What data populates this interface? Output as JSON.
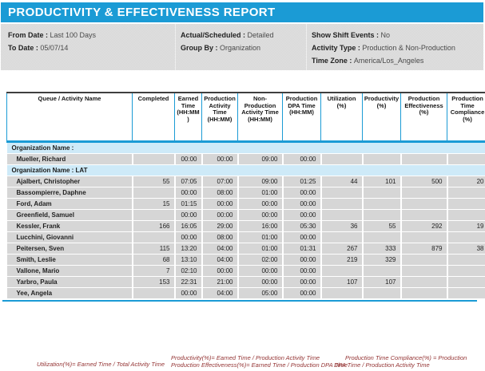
{
  "title": "PRODUCTIVITY & EFFECTIVENESS REPORT",
  "colors": {
    "brand_blue": "#1b9bd5",
    "group_row_blue": "#cbe9f7",
    "data_row_gray": "#d6d6d6",
    "footnote_red": "#943434"
  },
  "filters": {
    "col1": [
      {
        "label": "From Date",
        "value": "Last 100 Days"
      },
      {
        "label": "To Date",
        "value": "05/07/14"
      }
    ],
    "col2": [
      {
        "label": "Actual/Scheduled",
        "value": "Detailed"
      },
      {
        "label": "Group By",
        "value": "Organization"
      }
    ],
    "col3": [
      {
        "label": "Show Shift Events",
        "value": "No"
      },
      {
        "label": "Activity Type",
        "value": "Production & Non-Production"
      },
      {
        "label": "Time Zone",
        "value": "America/Los_Angeles"
      }
    ]
  },
  "table": {
    "columns": [
      "Queue / Activity Name",
      "Completed",
      "Earned Time (HH:MM )",
      "Production Activity Time (HH:MM)",
      "Non- Production Activity Time (HH:MM)",
      "Production DPA Time (HH:MM)",
      "Utilization (%)",
      "Productivity(%)",
      "Production Effectiveness (%)",
      "Production Time Compliance (%)"
    ],
    "rows": [
      {
        "type": "group",
        "label": "Organization Name :"
      },
      {
        "type": "data",
        "name": "Mueller, Richard",
        "values": [
          "",
          "00:00",
          "00:00",
          "09:00",
          "00:00",
          "",
          "",
          "",
          ""
        ]
      },
      {
        "type": "group",
        "label": "Organization Name : LAT"
      },
      {
        "type": "data",
        "name": "Ajalbert, Christopher",
        "values": [
          "55",
          "07:05",
          "07:00",
          "09:00",
          "01:25",
          "44",
          "101",
          "500",
          "20"
        ]
      },
      {
        "type": "data",
        "name": "Bassompierre, Daphne",
        "values": [
          "",
          "00:00",
          "08:00",
          "01:00",
          "00:00",
          "",
          "",
          "",
          ""
        ]
      },
      {
        "type": "data",
        "name": "Ford, Adam",
        "values": [
          "15",
          "01:15",
          "00:00",
          "00:00",
          "00:00",
          "",
          "",
          "",
          ""
        ]
      },
      {
        "type": "data",
        "name": "Greenfield, Samuel",
        "values": [
          "",
          "00:00",
          "00:00",
          "00:00",
          "00:00",
          "",
          "",
          "",
          ""
        ]
      },
      {
        "type": "data",
        "name": "Kessler, Frank",
        "values": [
          "166",
          "16:05",
          "29:00",
          "16:00",
          "05:30",
          "36",
          "55",
          "292",
          "19"
        ]
      },
      {
        "type": "data",
        "name": "Lucchini, Giovanni",
        "values": [
          "",
          "00:00",
          "08:00",
          "01:00",
          "00:00",
          "",
          "",
          "",
          ""
        ]
      },
      {
        "type": "data",
        "name": "Peitersen, Sven",
        "values": [
          "115",
          "13:20",
          "04:00",
          "01:00",
          "01:31",
          "267",
          "333",
          "879",
          "38"
        ]
      },
      {
        "type": "data",
        "name": "Smith, Leslie",
        "values": [
          "68",
          "13:10",
          "04:00",
          "02:00",
          "00:00",
          "219",
          "329",
          "",
          ""
        ]
      },
      {
        "type": "data",
        "name": "Vallone, Mario",
        "values": [
          "7",
          "02:10",
          "00:00",
          "00:00",
          "00:00",
          "",
          "",
          "",
          ""
        ]
      },
      {
        "type": "data",
        "name": "Yarbro, Paula",
        "values": [
          "153",
          "22:31",
          "21:00",
          "00:00",
          "00:00",
          "107",
          "107",
          "",
          ""
        ]
      },
      {
        "type": "data",
        "name": "Yee, Angela",
        "values": [
          "",
          "00:00",
          "04:00",
          "05:00",
          "00:00",
          "",
          "",
          "",
          ""
        ]
      }
    ]
  },
  "footnotes": {
    "utilization": "Utilization(%)= Earned Time / Total Activity Time",
    "productivity": "Productivity(%)= Earned Time / Production Activity Time",
    "effectiveness": "Production Effectiveness(%)= Earned Time / Production DPA Time",
    "compliance": "Production Time Compliance(%) = Production DPA Time / Production Activity Time"
  }
}
